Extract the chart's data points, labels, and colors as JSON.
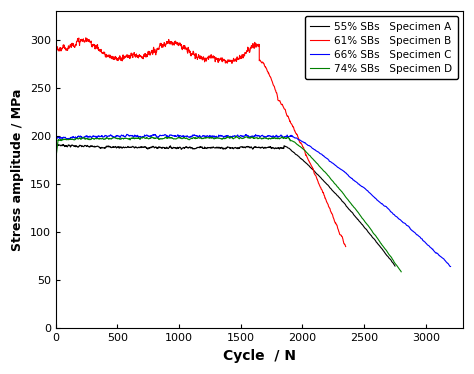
{
  "title": "",
  "xlabel": "Cycle  / N",
  "ylabel": "Stress amplitude / MPa",
  "xlim": [
    0,
    3300
  ],
  "ylim": [
    0,
    330
  ],
  "xticks": [
    0,
    500,
    1000,
    1500,
    2000,
    2500,
    3000
  ],
  "yticks": [
    0,
    50,
    100,
    150,
    200,
    250,
    300
  ],
  "legend": [
    {
      "label": "55% SBs   Specimen A",
      "color": "black"
    },
    {
      "label": "61% SBs   Specimen B",
      "color": "red"
    },
    {
      "label": "66% SBs   Specimen C",
      "color": "blue"
    },
    {
      "label": "74% SBs   Specimen D",
      "color": "green"
    }
  ],
  "background": "#ffffff",
  "linewidth": 0.8,
  "noise_A": 1.5,
  "noise_B": 3.0,
  "noise_C": 2.0,
  "noise_D": 1.5
}
